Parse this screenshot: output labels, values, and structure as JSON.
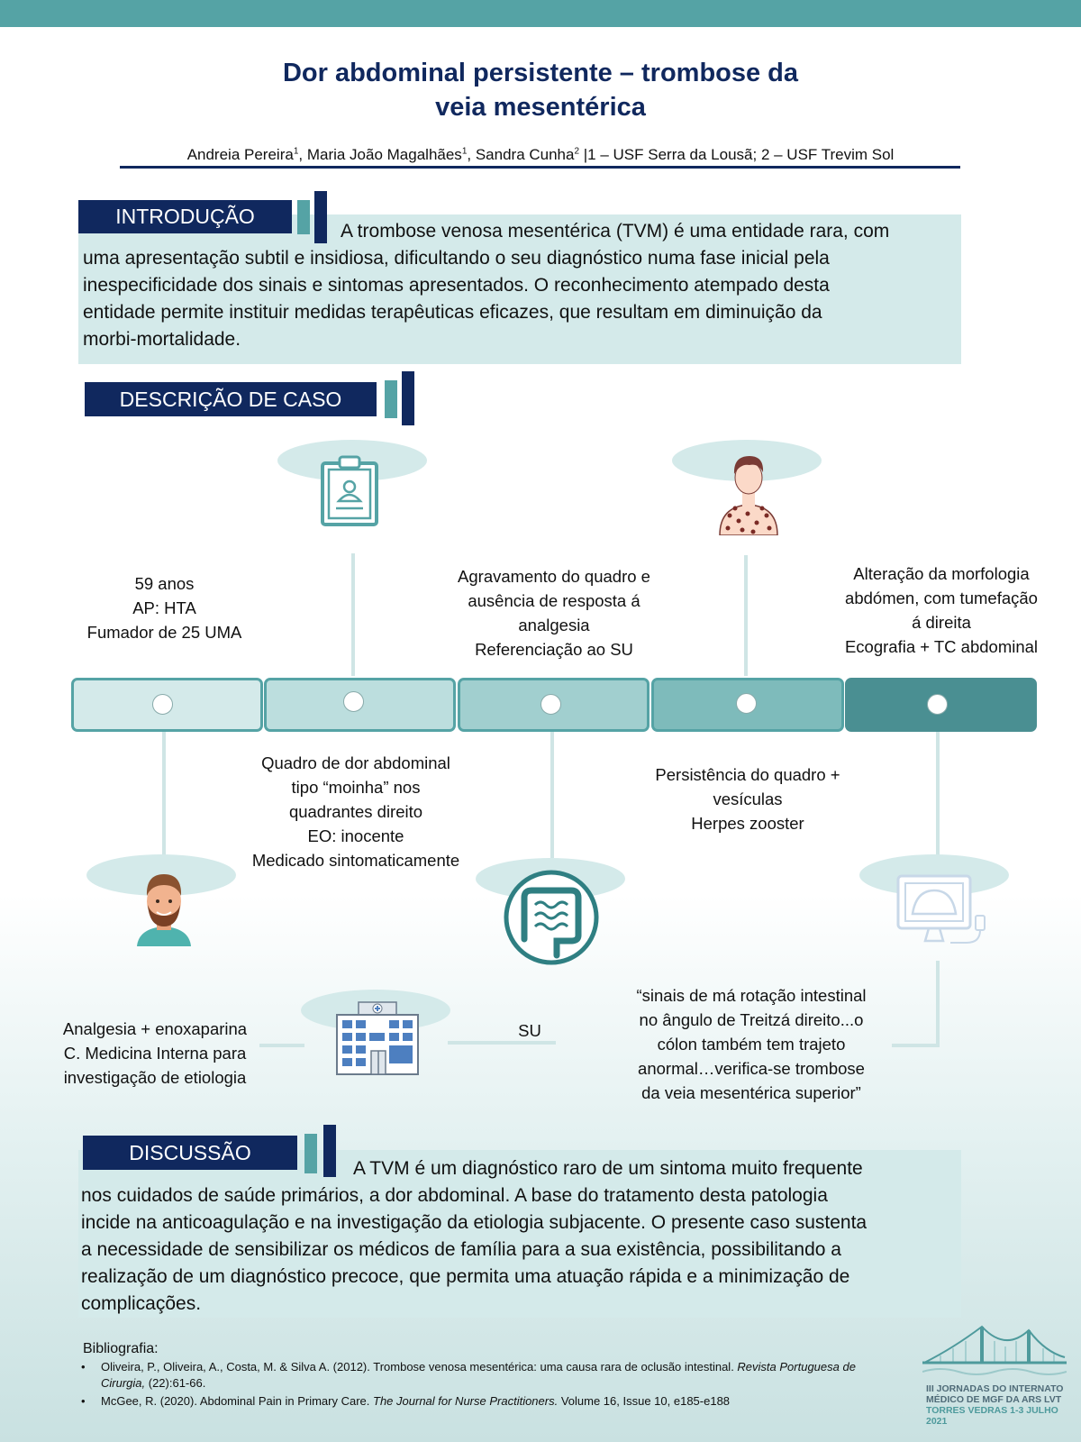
{
  "header": {
    "title_line1": "Dor abdominal persistente – trombose da",
    "title_line2": "veia mesentérica",
    "authors": {
      "a1": "Andreia Pereira",
      "a2": "Maria João Magalhães",
      "a3": "Sandra Cunha",
      "s1": "1",
      "s2": "1",
      "s3": "2",
      "affiliations": " |1 – USF Serra da Lousã; 2 – USF Trevim Sol"
    }
  },
  "intro": {
    "label": "INTRODUÇÃO",
    "lines": [
      "A trombose venosa mesentérica (TVM) é uma entidade rara, com",
      "uma apresentação subtil e insidiosa, dificultando o seu diagnóstico numa fase inicial pela",
      "inespecificidade dos sinais e sintomas apresentados. O reconhecimento atempado desta",
      "entidade permite instituir medidas terapêuticas eficazes, que resultam em diminuição da",
      "morbi-mortalidade."
    ]
  },
  "case": {
    "label": "DESCRIÇÃO DE CASO",
    "top_events": [
      [
        "59 anos",
        "AP: HTA",
        "Fumador de 25 UMA"
      ],
      [
        "Agravamento do quadro e",
        "ausência de resposta á",
        "analgesia",
        "Referenciação ao SU"
      ],
      [
        "Alteração da morfologia",
        "abdómen, com tumefação",
        "á direita",
        "Ecografia + TC abdominal"
      ]
    ],
    "bottom_events": [
      [
        "Quadro de dor abdominal",
        "tipo “moinha” nos",
        "quadrantes direito",
        "EO: inocente",
        "Medicado sintomaticamente"
      ],
      [
        "Persistência do quadro +",
        "vesículas",
        "Herpes zooster"
      ]
    ],
    "lower_row": {
      "treatment": [
        "Analgesia + enoxaparina",
        "C. Medicina Interna para",
        "investigação de etiologia"
      ],
      "su": "SU",
      "quote": [
        "“sinais de má rotação intestinal",
        "no ângulo de Treitzá direito...o",
        "cólon também tem trajeto",
        "anormal…verifica-se trombose",
        "da veia mesentérica superior”"
      ]
    },
    "icons": [
      "clipboard-icon",
      "patient-rash-icon",
      "man-avatar-icon",
      "intestine-icon",
      "ultrasound-monitor-icon",
      "hospital-icon"
    ],
    "segment_colors": [
      "#d4eaea",
      "#bcdede",
      "#a1cfcf",
      "#7ebbbb",
      "#4a8f92"
    ]
  },
  "discussion": {
    "label": "DISCUSSÃO",
    "lines": [
      "A TVM é um diagnóstico raro de um sintoma muito frequente",
      "nos cuidados de saúde primários, a dor abdominal. A base do tratamento desta patologia",
      "incide na anticoagulação e na investigação da etiologia subjacente.  O presente caso sustenta",
      "a necessidade de sensibilizar os médicos de família para a sua existência, possibilitando a",
      "realização de um diagnóstico precoce, que permita uma atuação rápida e a minimização de",
      "complicações."
    ]
  },
  "bibliography": {
    "heading": "Bibliografia:",
    "ref1": {
      "text": "Oliveira, P., Oliveira, A., Costa, M. & Silva A. (2012). Trombose venosa mesentérica: uma causa rara de oclusão intestinal. ",
      "journal": "Revista Portuguesa de Cirurgia,",
      "tail": " (22):61-66."
    },
    "ref2": {
      "text": "McGee, R. (2020). Abdominal Pain in Primary Care. ",
      "journal": "The Journal for Nurse Practitioners.",
      "tail": " Volume 16, Issue 10, e185-e188"
    }
  },
  "logo": {
    "line1": "III JORNADAS DO INTERNATO",
    "line2": "MÉDICO DE MGF DA ARS LVT",
    "line3": "TORRES VEDRAS 1-3 JULHO 2021"
  }
}
